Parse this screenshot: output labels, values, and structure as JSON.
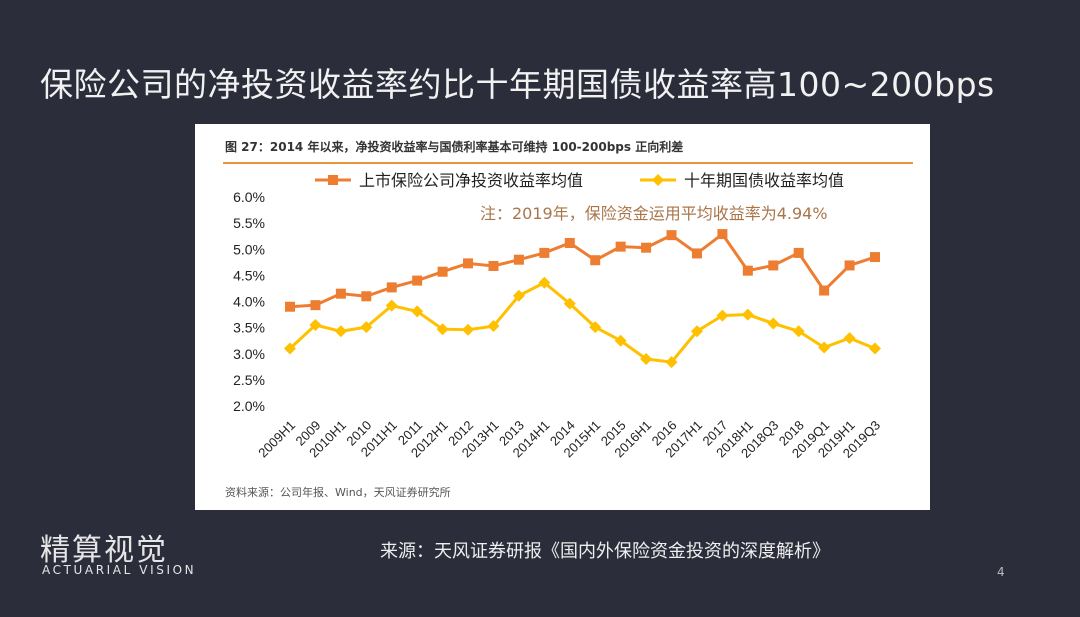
{
  "slide": {
    "title": "保险公司的净投资收益率约比十年期国债收益率高100~200bps",
    "source": "来源：天风证券研报《国内外保险资金投资的深度解析》",
    "page_number": "4",
    "logo": {
      "cn": "精算视觉",
      "en": "ACTUARIAL VISION"
    }
  },
  "figure": {
    "caption": "图 27：2014 年以来，净投资收益率与国债利率基本可维持 100-200bps 正向利差",
    "source": "资料来源：公司年报、Wind，天风证券研究所"
  },
  "chart_data": {
    "type": "line",
    "categories": [
      "2009H1",
      "2009",
      "2010H1",
      "2010",
      "2011H1",
      "2011",
      "2012H1",
      "2012",
      "2013H1",
      "2013",
      "2014H1",
      "2014",
      "2015H1",
      "2015",
      "2016H1",
      "2016",
      "2017H1",
      "2017",
      "2018H1",
      "2018Q3",
      "2018",
      "2019Q1",
      "2019H1",
      "2019Q3"
    ],
    "series": [
      {
        "name": "上市保险公司净投资收益率均值",
        "color": "#ed7d31",
        "marker": "square",
        "values": [
          3.9,
          3.93,
          4.15,
          4.1,
          4.27,
          4.4,
          4.57,
          4.73,
          4.68,
          4.8,
          4.93,
          5.12,
          4.79,
          5.05,
          5.03,
          5.27,
          4.92,
          5.29,
          4.59,
          4.69,
          4.93,
          4.21,
          4.69,
          4.85
        ]
      },
      {
        "name": "十年期国债收益率均值",
        "color": "#ffc000",
        "marker": "diamond",
        "values": [
          3.1,
          3.55,
          3.43,
          3.51,
          3.92,
          3.81,
          3.47,
          3.46,
          3.53,
          4.11,
          4.36,
          3.96,
          3.51,
          3.25,
          2.9,
          2.84,
          3.43,
          3.73,
          3.75,
          3.58,
          3.43,
          3.12,
          3.3,
          3.1
        ]
      }
    ],
    "y_ticks": [
      "2.0%",
      "2.5%",
      "3.0%",
      "3.5%",
      "4.0%",
      "4.5%",
      "5.0%",
      "5.5%",
      "6.0%"
    ],
    "ylim": [
      2.0,
      6.0
    ],
    "annotation": "注：2019年，保险资金运用平均收益率为4.94%",
    "annotation_color": "#a9764a",
    "legend_position": "top",
    "grid": false
  }
}
